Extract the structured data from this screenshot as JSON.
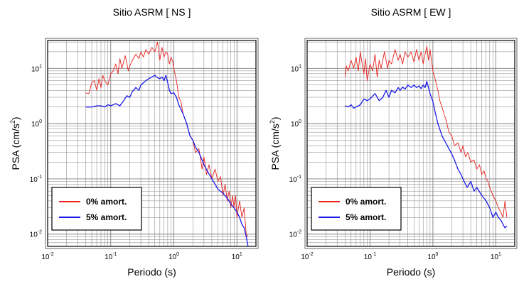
{
  "chart_data": [
    {
      "type": "line",
      "title": "Sitio ASRM [ NS ]",
      "xlabel": "Periodo (s)",
      "ylabel": "PSA (cm/s2)",
      "ylabel_main": "PSA (cm/s",
      "ylabel_sup": "2",
      "ylabel_close": ")",
      "xscale": "log",
      "yscale": "log",
      "xlim": [
        0.01,
        20
      ],
      "ylim": [
        0.006,
        32
      ],
      "grid": true,
      "legend_position": "bottom-left",
      "x_ticks": [
        {
          "value": 0.01,
          "base": "10",
          "exp": "-2"
        },
        {
          "value": 0.1,
          "base": "10",
          "exp": "-1"
        },
        {
          "value": 1,
          "base": "10",
          "exp": "0"
        },
        {
          "value": 10,
          "base": "10",
          "exp": "1"
        }
      ],
      "y_ticks": [
        {
          "value": 0.01,
          "base": "10",
          "exp": "-2"
        },
        {
          "value": 0.1,
          "base": "10",
          "exp": "-1"
        },
        {
          "value": 1,
          "base": "10",
          "exp": "0"
        },
        {
          "value": 10,
          "base": "10",
          "exp": "1"
        }
      ],
      "series": [
        {
          "name": "0% amort.",
          "color": "#e8211d",
          "x": [
            0.04,
            0.045,
            0.05,
            0.055,
            0.06,
            0.065,
            0.07,
            0.075,
            0.08,
            0.09,
            0.1,
            0.11,
            0.12,
            0.13,
            0.14,
            0.15,
            0.17,
            0.19,
            0.2,
            0.22,
            0.25,
            0.28,
            0.3,
            0.33,
            0.36,
            0.4,
            0.45,
            0.5,
            0.55,
            0.6,
            0.65,
            0.7,
            0.75,
            0.8,
            0.85,
            0.9,
            0.95,
            1.0,
            1.1,
            1.2,
            1.3,
            1.4,
            1.5,
            1.6,
            1.8,
            2.0,
            2.2,
            2.5,
            2.8,
            3.0,
            3.3,
            3.6,
            4.0,
            4.5,
            5.0,
            5.5,
            6.0,
            6.5,
            7.0,
            7.5,
            8.0,
            8.5,
            9.0,
            9.5,
            10.0,
            11.0,
            12.0,
            13.0,
            14.0,
            15.0
          ],
          "y": [
            3.6,
            3.5,
            5.5,
            6.0,
            4.0,
            6.5,
            4.5,
            7.5,
            6.0,
            5.0,
            8.0,
            9.0,
            12.0,
            8.0,
            15.0,
            10.0,
            17.0,
            9.0,
            11.0,
            14.0,
            18.0,
            15.0,
            20.0,
            16.0,
            22.0,
            18.0,
            24.0,
            20.0,
            30.0,
            14.0,
            24.0,
            16.0,
            20.0,
            18.0,
            12.0,
            16.0,
            14.0,
            10.0,
            6.0,
            3.0,
            2.5,
            1.5,
            1.2,
            1.0,
            0.6,
            0.5,
            0.3,
            0.35,
            0.15,
            0.25,
            0.12,
            0.18,
            0.1,
            0.15,
            0.09,
            0.11,
            0.05,
            0.08,
            0.04,
            0.06,
            0.03,
            0.05,
            0.03,
            0.05,
            0.02,
            0.04,
            0.02,
            0.03,
            0.01,
            0.009
          ]
        },
        {
          "name": "5% amort.",
          "color": "#1a1aeb",
          "x": [
            0.04,
            0.05,
            0.06,
            0.07,
            0.08,
            0.09,
            0.1,
            0.12,
            0.14,
            0.16,
            0.18,
            0.2,
            0.22,
            0.25,
            0.28,
            0.3,
            0.33,
            0.36,
            0.4,
            0.45,
            0.5,
            0.55,
            0.6,
            0.65,
            0.7,
            0.75,
            0.8,
            0.85,
            0.9,
            1.0,
            1.1,
            1.2,
            1.4,
            1.6,
            1.8,
            2.0,
            2.2,
            2.5,
            2.8,
            3.0,
            3.5,
            4.0,
            4.5,
            5.0,
            6.0,
            7.0,
            8.0,
            9.0,
            10.0,
            11.0,
            12.0,
            13.0,
            14.0,
            15.0
          ],
          "y": [
            2.0,
            2.0,
            2.1,
            2.1,
            2.0,
            2.2,
            2.1,
            2.3,
            2.1,
            2.6,
            3.2,
            3.0,
            3.8,
            4.5,
            4.0,
            5.0,
            5.5,
            6.0,
            6.5,
            7.0,
            7.5,
            6.8,
            6.5,
            7.0,
            6.0,
            7.5,
            5.5,
            4.0,
            3.5,
            3.6,
            3.0,
            2.2,
            1.5,
            1.0,
            0.6,
            0.5,
            0.38,
            0.3,
            0.22,
            0.18,
            0.13,
            0.1,
            0.08,
            0.065,
            0.055,
            0.045,
            0.035,
            0.03,
            0.025,
            0.02,
            0.015,
            0.013,
            0.009,
            0.006
          ]
        }
      ]
    },
    {
      "type": "line",
      "title": "Sitio ASRM [ EW ]",
      "xlabel": "Periodo (s)",
      "ylabel": "PSA (cm/s2)",
      "ylabel_main": "PSA (cm/s",
      "ylabel_sup": "2",
      "ylabel_close": ")",
      "xscale": "log",
      "yscale": "log",
      "xlim": [
        0.01,
        20
      ],
      "ylim": [
        0.006,
        32
      ],
      "grid": true,
      "legend_position": "bottom-left",
      "x_ticks": [
        {
          "value": 0.01,
          "base": "10",
          "exp": "-2"
        },
        {
          "value": 0.1,
          "base": "10",
          "exp": "-1"
        },
        {
          "value": 1,
          "base": "10",
          "exp": "0"
        },
        {
          "value": 10,
          "base": "10",
          "exp": "1"
        }
      ],
      "y_ticks": [
        {
          "value": 0.01,
          "base": "10",
          "exp": "-2"
        },
        {
          "value": 0.1,
          "base": "10",
          "exp": "-1"
        },
        {
          "value": 1,
          "base": "10",
          "exp": "0"
        },
        {
          "value": 10,
          "base": "10",
          "exp": "1"
        }
      ],
      "series": [
        {
          "name": "0% amort.",
          "color": "#e8211d",
          "x": [
            0.04,
            0.042,
            0.045,
            0.05,
            0.055,
            0.06,
            0.065,
            0.07,
            0.075,
            0.08,
            0.085,
            0.09,
            0.1,
            0.11,
            0.12,
            0.13,
            0.14,
            0.15,
            0.17,
            0.19,
            0.2,
            0.22,
            0.25,
            0.28,
            0.3,
            0.33,
            0.36,
            0.4,
            0.45,
            0.5,
            0.55,
            0.6,
            0.65,
            0.7,
            0.75,
            0.8,
            0.85,
            0.9,
            0.95,
            1.0,
            1.1,
            1.2,
            1.3,
            1.4,
            1.5,
            1.6,
            1.8,
            2.0,
            2.2,
            2.5,
            2.8,
            3.0,
            3.3,
            3.6,
            4.0,
            4.5,
            5.0,
            5.5,
            6.0,
            6.5,
            7.0,
            7.5,
            8.0,
            9.0,
            10.0,
            11.0,
            12.0,
            13.0,
            14.0,
            15.0
          ],
          "y": [
            7.0,
            11.0,
            9.0,
            14.0,
            10.0,
            16.0,
            9.0,
            20.0,
            12.0,
            8.0,
            15.0,
            6.0,
            12.0,
            9.0,
            18.0,
            7.0,
            14.0,
            10.0,
            20.0,
            10.0,
            14.0,
            12.0,
            22.0,
            14.0,
            18.0,
            12.0,
            20.0,
            16.0,
            20.0,
            13.0,
            22.0,
            14.0,
            20.0,
            12.0,
            18.0,
            25.0,
            14.0,
            22.0,
            14.0,
            9.0,
            6.0,
            4.0,
            2.5,
            2.0,
            1.5,
            1.2,
            0.7,
            0.6,
            0.4,
            0.45,
            0.3,
            0.4,
            0.25,
            0.3,
            0.2,
            0.22,
            0.15,
            0.18,
            0.12,
            0.14,
            0.1,
            0.09,
            0.07,
            0.05,
            0.04,
            0.03,
            0.025,
            0.02,
            0.04,
            0.02
          ]
        },
        {
          "name": "5% amort.",
          "color": "#1a1aeb",
          "x": [
            0.04,
            0.045,
            0.05,
            0.055,
            0.06,
            0.07,
            0.08,
            0.09,
            0.1,
            0.12,
            0.14,
            0.16,
            0.18,
            0.2,
            0.22,
            0.25,
            0.28,
            0.3,
            0.33,
            0.36,
            0.4,
            0.45,
            0.5,
            0.55,
            0.6,
            0.65,
            0.7,
            0.75,
            0.8,
            0.85,
            0.9,
            1.0,
            1.1,
            1.2,
            1.4,
            1.6,
            1.8,
            2.0,
            2.2,
            2.5,
            2.8,
            3.0,
            3.5,
            4.0,
            4.5,
            5.0,
            6.0,
            7.0,
            8.0,
            9.0,
            10.0,
            11.0,
            12.0,
            13.0,
            14.0,
            15.0
          ],
          "y": [
            2.1,
            2.0,
            2.2,
            1.9,
            2.0,
            2.2,
            2.8,
            2.6,
            2.8,
            3.5,
            2.6,
            3.0,
            4.0,
            3.0,
            4.0,
            3.6,
            4.5,
            4.0,
            4.6,
            4.2,
            5.0,
            4.5,
            5.0,
            4.5,
            4.8,
            4.3,
            5.0,
            4.5,
            5.8,
            4.5,
            3.5,
            2.5,
            1.5,
            1.0,
            0.6,
            0.45,
            0.35,
            0.28,
            0.22,
            0.15,
            0.12,
            0.1,
            0.07,
            0.09,
            0.06,
            0.07,
            0.05,
            0.04,
            0.03,
            0.02,
            0.025,
            0.02,
            0.018,
            0.015,
            0.013,
            0.014
          ]
        }
      ]
    }
  ]
}
